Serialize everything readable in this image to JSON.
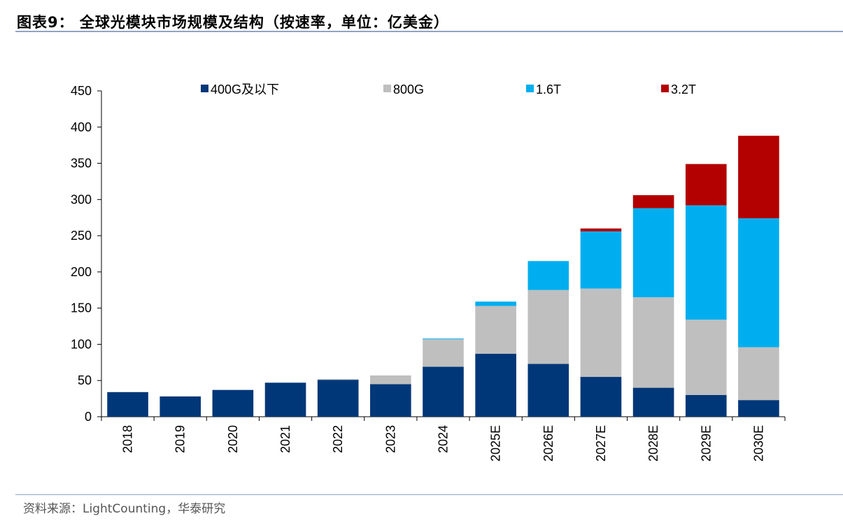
{
  "title": "图表9： 全球光模块市场规模及结构（按速率，单位：亿美金）",
  "source": "资料来源：LightCounting，华泰研究",
  "chart_data": {
    "type": "bar",
    "stacked": true,
    "title": "图表9： 全球光模块市场规模及结构（按速率，单位：亿美金）",
    "xlabel": "",
    "ylabel": "",
    "ylim": [
      0,
      450
    ],
    "yticks": [
      0,
      50,
      100,
      150,
      200,
      250,
      300,
      350,
      400,
      450
    ],
    "legend_position": "top",
    "grid": false,
    "categories": [
      "2018",
      "2019",
      "2020",
      "2021",
      "2022",
      "2023",
      "2024",
      "2025E",
      "2026E",
      "2027E",
      "2028E",
      "2029E",
      "2030E"
    ],
    "series": [
      {
        "name": "400G及以下",
        "color": "#003778",
        "values": [
          34,
          28,
          37,
          47,
          51,
          45,
          69,
          87,
          73,
          55,
          40,
          30,
          23
        ]
      },
      {
        "name": "800G",
        "color": "#BFBFBF",
        "values": [
          0,
          0,
          0,
          0,
          1,
          12,
          38,
          66,
          102,
          122,
          125,
          104,
          73
        ]
      },
      {
        "name": "1.6T",
        "color": "#00AEEF",
        "values": [
          0,
          0,
          0,
          0,
          0,
          0,
          1,
          6,
          40,
          79,
          123,
          158,
          178
        ]
      },
      {
        "name": "3.2T",
        "color": "#B30000",
        "values": [
          0,
          0,
          0,
          0,
          0,
          0,
          0,
          0,
          0,
          4,
          18,
          57,
          114
        ]
      }
    ]
  }
}
